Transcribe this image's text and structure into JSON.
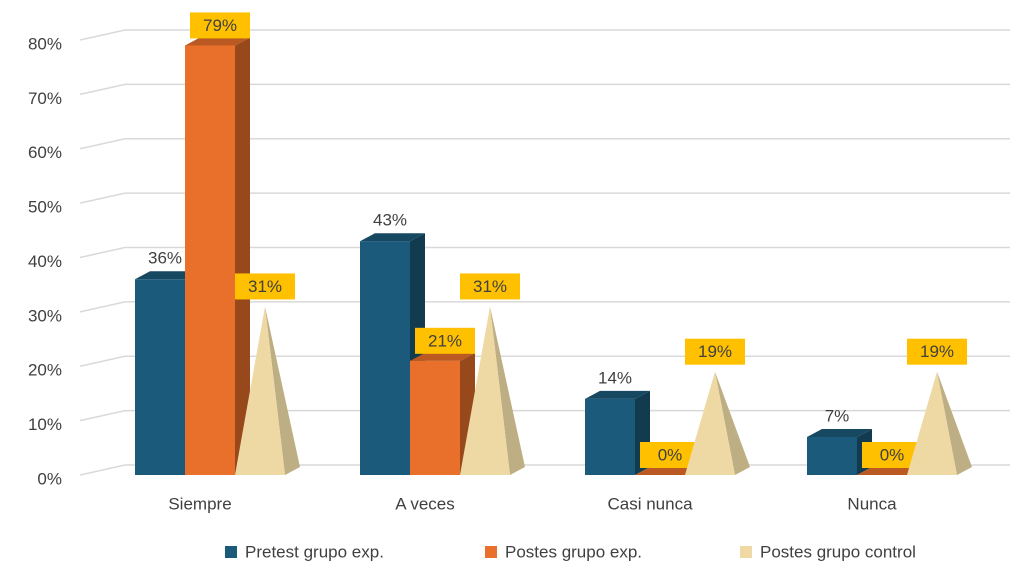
{
  "chart_data": {
    "type": "bar3d",
    "categories": [
      "Siempre",
      "A veces",
      "Casi nunca",
      "Nunca"
    ],
    "series": [
      {
        "name": "Pretest grupo exp.",
        "color": "#1b5a7a",
        "shape": "column",
        "values": [
          36,
          43,
          14,
          7
        ],
        "value_labels": [
          "36%",
          "43%",
          "14%",
          "7%"
        ]
      },
      {
        "name": "Postes grupo exp.",
        "color": "#e8702a",
        "shape": "column",
        "values": [
          79,
          21,
          0,
          0
        ],
        "value_labels": [
          "79%",
          "21%",
          "0%",
          "0%"
        ]
      },
      {
        "name": "Postes grupo control",
        "color": "#eed9a4",
        "shape": "pyramid",
        "values": [
          31,
          31,
          19,
          19
        ],
        "value_labels": [
          "31%",
          "31%",
          "19%",
          "19%"
        ]
      }
    ],
    "ylim": [
      0,
      80
    ],
    "yticks": [
      {
        "value": 0,
        "label": "0%"
      },
      {
        "value": 10,
        "label": "10%"
      },
      {
        "value": 20,
        "label": "20%"
      },
      {
        "value": 30,
        "label": "30%"
      },
      {
        "value": 40,
        "label": "40%"
      },
      {
        "value": 50,
        "label": "50%"
      },
      {
        "value": 60,
        "label": "60%"
      },
      {
        "value": 70,
        "label": "70%"
      },
      {
        "value": 80,
        "label": "80%"
      }
    ],
    "grid": true,
    "legend": "bottom"
  }
}
